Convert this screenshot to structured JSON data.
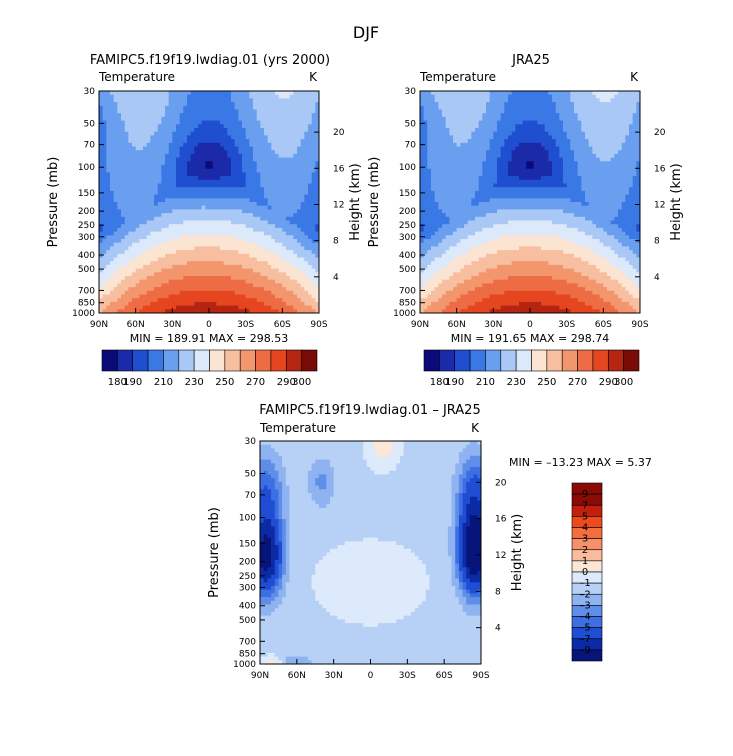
{
  "figure_title": "DJF",
  "chart_data": [
    {
      "type": "heatmap",
      "title": "FAMIPC5.f19f19.lwdiag.01 (yrs 2000)",
      "variable": "Temperature",
      "units": "K",
      "stats": "MIN = 189.91   MAX = 298.53",
      "xlabel": "",
      "ylabel": "Pressure (mb)",
      "y2label": "Height (km)",
      "x_ticks": [
        "90N",
        "60N",
        "30N",
        "0",
        "30S",
        "60S",
        "90S"
      ],
      "x_tick_lat": [
        90,
        60,
        30,
        0,
        -30,
        -60,
        -90
      ],
      "y_ticks": [
        "30",
        "50",
        "70",
        "100",
        "150",
        "200",
        "250",
        "300",
        "400",
        "500",
        "700",
        "850",
        "1000"
      ],
      "y_tick_p": [
        30,
        50,
        70,
        100,
        150,
        200,
        250,
        300,
        400,
        500,
        700,
        850,
        1000
      ],
      "y2_ticks": [
        "20",
        "16",
        "12",
        "8",
        "4"
      ],
      "y2_tick_km": [
        20,
        16,
        12,
        8,
        4
      ],
      "levels": [
        180,
        190,
        200,
        210,
        220,
        230,
        240,
        250,
        260,
        270,
        280,
        290,
        300
      ],
      "colorbar_labels": [
        "180",
        "190",
        "210",
        "230",
        "250",
        "270",
        "290",
        "300"
      ]
    },
    {
      "type": "heatmap",
      "title": "JRA25",
      "variable": "Temperature",
      "units": "K",
      "stats": "MIN = 191.65   MAX = 298.74",
      "xlabel": "",
      "ylabel": "Pressure (mb)",
      "y2label": "Height (km)",
      "x_ticks": [
        "90N",
        "60N",
        "30N",
        "0",
        "30S",
        "60S",
        "90S"
      ],
      "x_tick_lat": [
        90,
        60,
        30,
        0,
        -30,
        -60,
        -90
      ],
      "y_ticks": [
        "30",
        "50",
        "70",
        "100",
        "150",
        "200",
        "250",
        "300",
        "400",
        "500",
        "700",
        "850",
        "1000"
      ],
      "y_tick_p": [
        30,
        50,
        70,
        100,
        150,
        200,
        250,
        300,
        400,
        500,
        700,
        850,
        1000
      ],
      "y2_ticks": [
        "20",
        "16",
        "12",
        "8",
        "4"
      ],
      "y2_tick_km": [
        20,
        16,
        12,
        8,
        4
      ],
      "levels": [
        180,
        190,
        200,
        210,
        220,
        230,
        240,
        250,
        260,
        270,
        280,
        290,
        300
      ],
      "colorbar_labels": [
        "180",
        "190",
        "210",
        "230",
        "250",
        "270",
        "290",
        "300"
      ]
    },
    {
      "type": "heatmap",
      "title": "FAMIPC5.f19f19.lwdiag.01 – JRA25",
      "variable": "Temperature",
      "units": "K",
      "stats": "MIN = –13.23   MAX =    5.37",
      "xlabel": "",
      "ylabel": "Pressure (mb)",
      "y2label": "Height (km)",
      "x_ticks": [
        "90N",
        "60N",
        "30N",
        "0",
        "30S",
        "60S",
        "90S"
      ],
      "x_tick_lat": [
        90,
        60,
        30,
        0,
        -30,
        -60,
        -90
      ],
      "y_ticks": [
        "30",
        "50",
        "70",
        "100",
        "150",
        "200",
        "250",
        "300",
        "400",
        "500",
        "700",
        "850",
        "1000"
      ],
      "y_tick_p": [
        30,
        50,
        70,
        100,
        150,
        200,
        250,
        300,
        400,
        500,
        700,
        850,
        1000
      ],
      "y2_ticks": [
        "20",
        "16",
        "12",
        "8",
        "4"
      ],
      "y2_tick_km": [
        20,
        16,
        12,
        8,
        4
      ],
      "levels": [
        9,
        7,
        5,
        4,
        3,
        2,
        1,
        0,
        -1,
        -2,
        -3,
        -4,
        -5,
        -7,
        -9
      ],
      "colorbar_labels": [
        "9",
        "7",
        "5",
        "4",
        "3",
        "2",
        "1",
        "0",
        "–1",
        "–2",
        "–3",
        "–4",
        "–5",
        "–7",
        "–9"
      ]
    }
  ],
  "colors": {
    "abs_palette": [
      "#0a0a78",
      "#1a2aa8",
      "#1f4fd0",
      "#3a78e6",
      "#6a9ff0",
      "#a9c8f5",
      "#dbe9fb",
      "#fbe4d2",
      "#f7bfa0",
      "#f3966e",
      "#ee6c44",
      "#e5461f",
      "#b52512",
      "#7a0c07"
    ],
    "diff_palette": [
      "#8a0a05",
      "#c2200d",
      "#ee4a1e",
      "#f26e3e",
      "#f5906a",
      "#f9bd9d",
      "#fce6d6",
      "#ddeafb",
      "#b7d0f6",
      "#8fb3f0",
      "#5f8ee9",
      "#3d6fe3",
      "#1f4dd3",
      "#0d2aa6",
      "#06157a"
    ]
  }
}
